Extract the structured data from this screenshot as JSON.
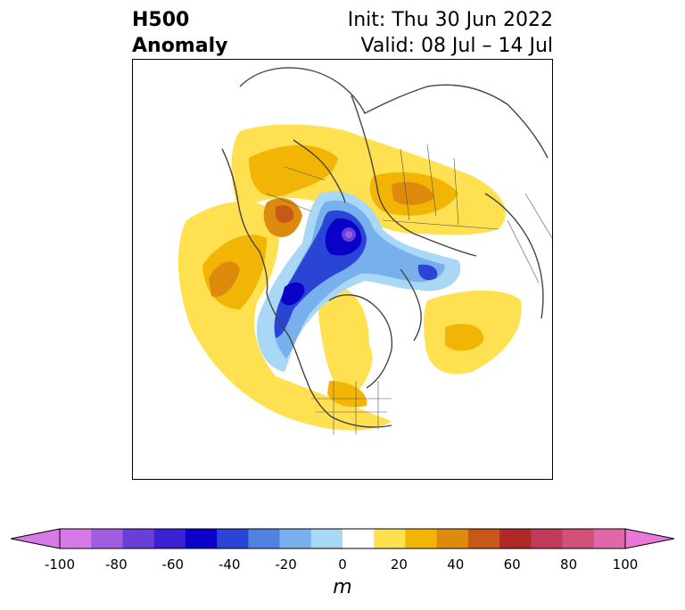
{
  "header": {
    "field": "H500",
    "kind": "Anomaly",
    "init": "Init: Thu 30 Jun 2022",
    "valid": "Valid: 08 Jul – 14 Jul"
  },
  "colorbar": {
    "unit_label": "m",
    "ticks": [
      "-100",
      "-80",
      "-60",
      "-40",
      "-20",
      "0",
      "20",
      "40",
      "60",
      "80",
      "100"
    ],
    "colors": [
      "#d57ae6",
      "#a15de0",
      "#6a3fd8",
      "#3a22d2",
      "#0a00c8",
      "#2a44d6",
      "#5282e0",
      "#78b0ee",
      "#a8d8f5",
      "#ffffff",
      "#ffe050",
      "#f2b505",
      "#de8a0c",
      "#c8581a",
      "#b02828",
      "#c03c5a",
      "#d05078",
      "#e068a8"
    ],
    "under_color": "#d57ae6",
    "over_color": "#e879d9"
  }
}
